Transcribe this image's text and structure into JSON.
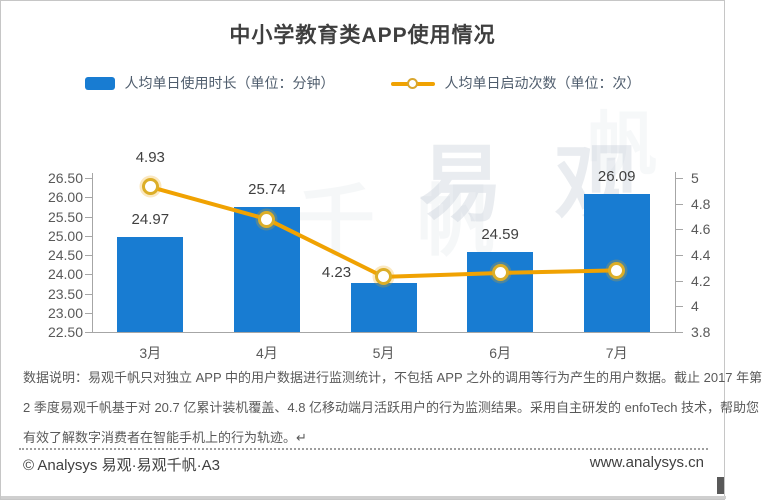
{
  "page": {
    "title": "中小学教育类APP使用情况",
    "watermark_primary": "易 观",
    "watermark_secondary": "千 帆",
    "watermark_tertiary": "帆",
    "note_lines": [
      "数据说明：易观千帆只对独立 APP 中的用户数据进行监测统计，不包括 APP 之外的调用等行为产生的用户数据。截止 2017 年第",
      "2 季度易观千帆基于对 20.7 亿累计装机覆盖、4.8 亿移动端月活跃用户的行为监测结果。采用自主研发的 enfoTech 技术，帮助您",
      "有效了解数字消费者在智能手机上的行为轨迹。↵"
    ],
    "footer_left": "© Analysys 易观·易观千帆·A3",
    "footer_right": "www.analysys.cn"
  },
  "legend": [
    {
      "label": "人均单日使用时长（单位：分钟）",
      "type": "bar",
      "color": "#187cd2"
    },
    {
      "label": "人均单日启动次数（单位：次）",
      "type": "line",
      "color": "#f0a202"
    }
  ],
  "chart_data": {
    "type": "combo-bar-line",
    "title": "中小学教育类APP使用情况",
    "categories": [
      "3月",
      "4月",
      "5月",
      "6月",
      "7月"
    ],
    "series": [
      {
        "name": "人均单日使用时长（单位：分钟）",
        "type": "bar",
        "axis": "left",
        "color": "#187cd2",
        "values": [
          24.97,
          25.74,
          23.78,
          24.59,
          26.09
        ],
        "labels": [
          "24.97",
          "25.74",
          "",
          "24.59",
          "26.09"
        ]
      },
      {
        "name": "人均单日启动次数（单位：次）",
        "type": "line",
        "axis": "right",
        "color": "#f0a202",
        "values": [
          4.93,
          4.68,
          4.23,
          4.26,
          4.28
        ],
        "labels": [
          "4.93",
          "",
          "4.23",
          "",
          ""
        ],
        "label_offsets": [
          [
            0,
            -29
          ],
          [
            0,
            0
          ],
          [
            -47,
            -4
          ],
          [
            0,
            0
          ],
          [
            0,
            0
          ]
        ]
      }
    ],
    "left_axis": {
      "min": 22.5,
      "max": 26.5,
      "ticks": [
        "26.50",
        "26.00",
        "25.50",
        "25.00",
        "24.50",
        "24.00",
        "23.50",
        "23.00",
        "22.50"
      ]
    },
    "right_axis": {
      "min": 3.8,
      "max": 5.0,
      "ticks": [
        "5",
        "4.8",
        "4.6",
        "4.4",
        "4.2",
        "4",
        "3.8"
      ]
    },
    "grid": false,
    "legend_position": "top"
  }
}
